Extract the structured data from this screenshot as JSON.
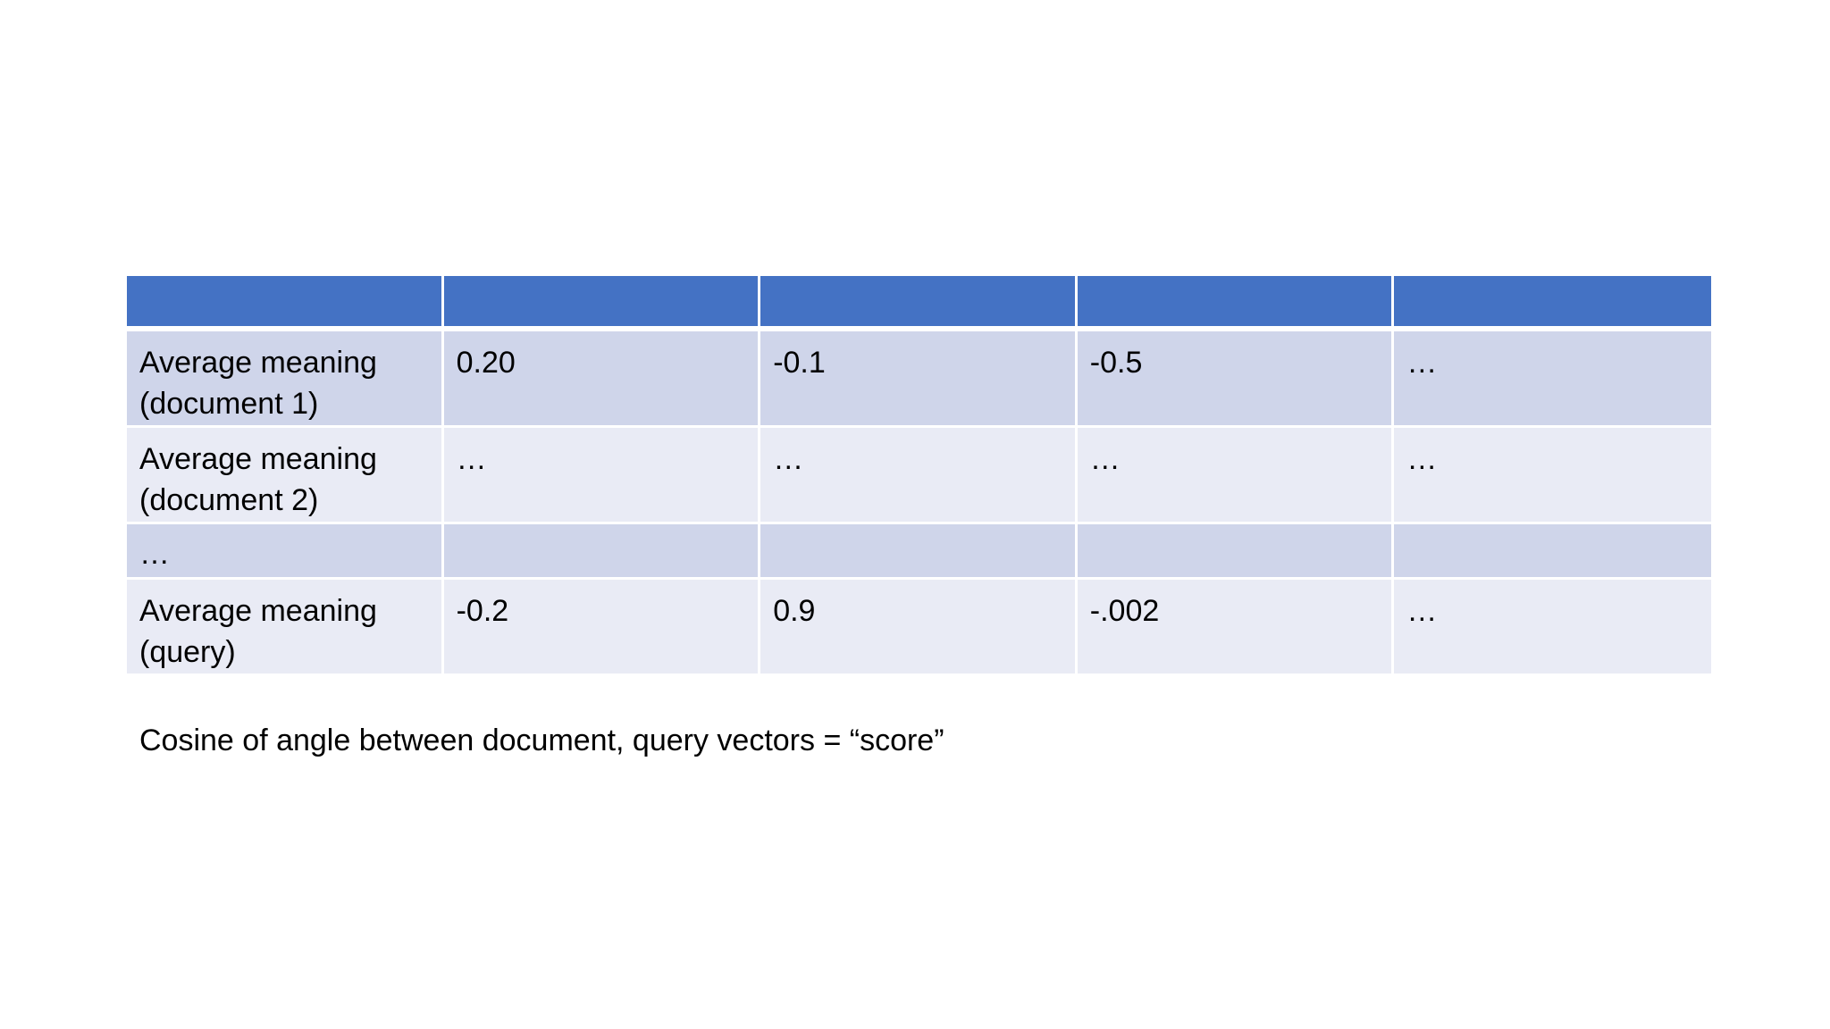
{
  "table": {
    "header": [
      "",
      "",
      "",
      "",
      ""
    ],
    "rows": [
      {
        "label": "Average meaning (document 1)",
        "cells": [
          "0.20",
          "-0.1",
          "-0.5",
          "…"
        ]
      },
      {
        "label": "Average meaning (document 2)",
        "cells": [
          "…",
          "…",
          "…",
          "…"
        ]
      },
      {
        "label": "…",
        "cells": [
          "",
          "",
          "",
          ""
        ]
      },
      {
        "label": "Average meaning (query)",
        "cells": [
          "-0.2",
          "0.9",
          "-.002",
          "…"
        ]
      }
    ]
  },
  "caption": "Cosine of angle between document, query vectors = “score”",
  "colors": {
    "header": "#4472c4",
    "row_dark": "#cfd5ea",
    "row_light": "#e9ebf5"
  }
}
